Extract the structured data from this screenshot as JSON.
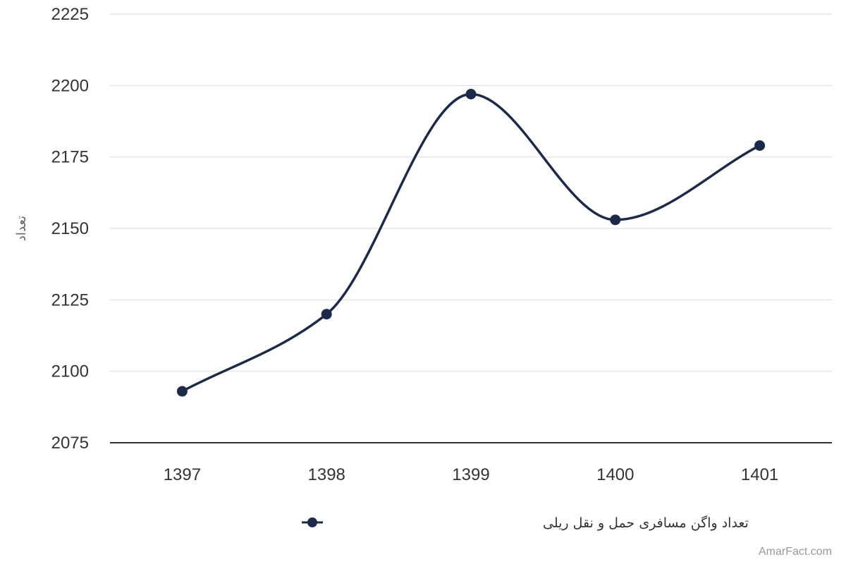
{
  "chart_data": {
    "type": "line",
    "smooth": true,
    "categories": [
      "1397",
      "1398",
      "1399",
      "1400",
      "1401"
    ],
    "series": [
      {
        "name": "تعداد واگن مسافری حمل و نقل ریلی",
        "values": [
          2093,
          2120,
          2197,
          2153,
          2179
        ],
        "color": "#1b2a4a"
      }
    ],
    "ylabel": "تعداد",
    "xlabel": "",
    "ylim": [
      2075,
      2225
    ],
    "yticks": [
      2075,
      2100,
      2125,
      2150,
      2175,
      2200,
      2225
    ],
    "grid": true,
    "legend": "bottom-center",
    "colors": {
      "line": "#1b2a4a",
      "grid": "#e6e6e6",
      "axis": "#333333"
    }
  },
  "credit": "AmarFact.com"
}
